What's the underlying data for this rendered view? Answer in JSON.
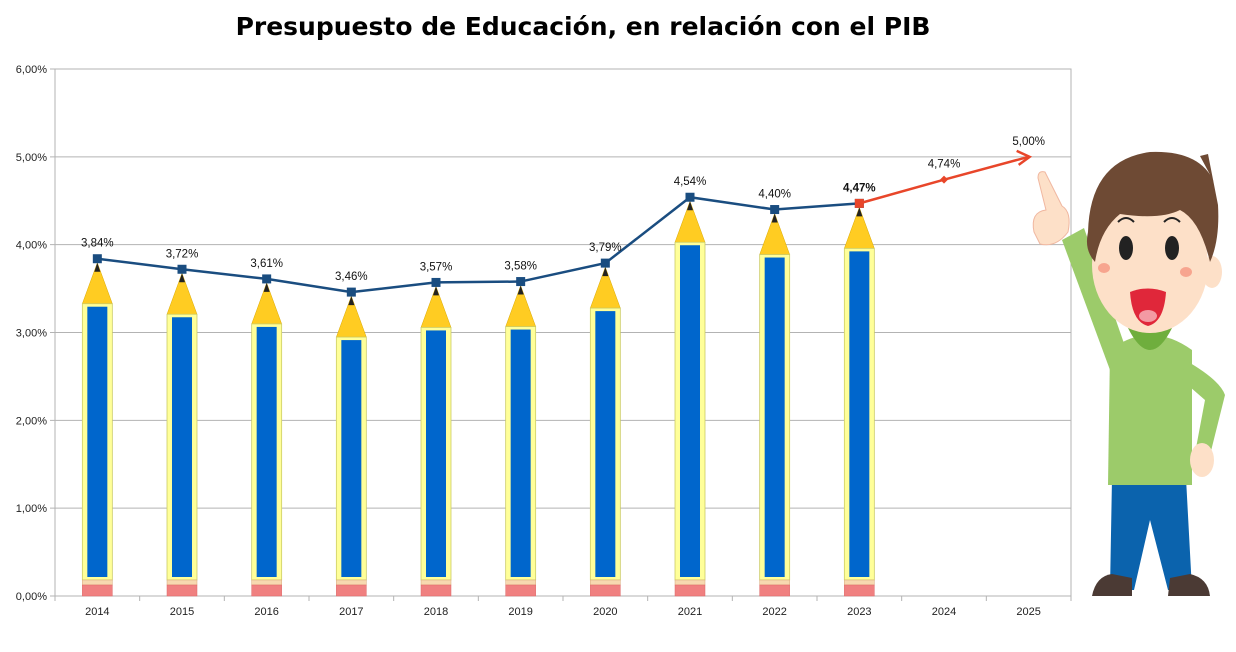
{
  "chart_data": {
    "type": "bar",
    "title": "Presupuesto de Educación, en relación con el PIB",
    "xlabel": "",
    "ylabel": "",
    "categories": [
      "2014",
      "2015",
      "2016",
      "2017",
      "2018",
      "2019",
      "2020",
      "2021",
      "2022",
      "2023",
      "2024",
      "2025"
    ],
    "series": [
      {
        "type": "bar",
        "values": [
          3.84,
          3.72,
          3.61,
          3.46,
          3.57,
          3.58,
          3.79,
          4.54,
          4.4,
          4.47,
          null,
          null
        ]
      },
      {
        "type": "line",
        "values": [
          3.84,
          3.72,
          3.61,
          3.46,
          3.57,
          3.58,
          3.79,
          4.54,
          4.4,
          4.47,
          null,
          null
        ],
        "color": "#1a4d80"
      },
      {
        "type": "line",
        "values": [
          null,
          null,
          null,
          null,
          null,
          null,
          null,
          null,
          null,
          4.47,
          4.74,
          5.0
        ],
        "color": "#e8462a"
      }
    ],
    "data_labels": [
      "3,84%",
      "3,72%",
      "3,61%",
      "3,46%",
      "3,57%",
      "3,58%",
      "3,79%",
      "4,54%",
      "4,40%",
      "4,47%",
      "4,74%",
      "5,00%"
    ],
    "ylim": [
      0,
      6
    ],
    "yticks": [
      "0,00%",
      "1,00%",
      "2,00%",
      "3,00%",
      "4,00%",
      "5,00%",
      "6,00%"
    ],
    "grid": true,
    "legend": "none",
    "colors": {
      "pencil_body": "#ffff99",
      "pencil_stripe": "#0066cc",
      "pencil_tip": "#ffcc22",
      "eraser": "#f08080",
      "line": "#1a4d80",
      "projection": "#e8462a"
    },
    "decoration": "cartoon-boy-pointing-icon"
  }
}
